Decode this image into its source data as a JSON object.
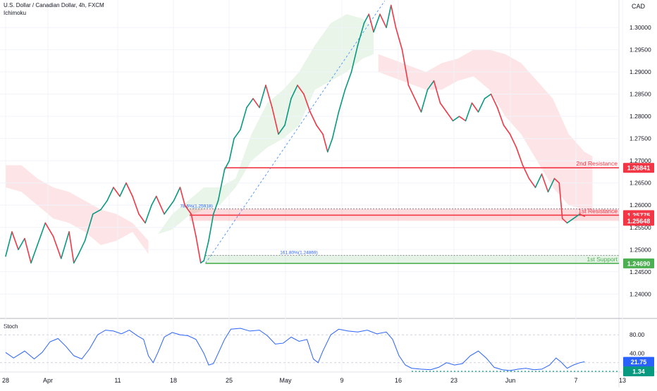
{
  "chart_data": [
    {
      "type": "line",
      "title": "U.S. Dollar / Canadian Dollar, 4h, FXCM",
      "indicator": "Ichimoku",
      "currency": "CAD",
      "ylim": [
        1.2345,
        1.3062
      ],
      "y_ticks": [
        "1.30000",
        "1.29500",
        "1.29000",
        "1.28500",
        "1.28000",
        "1.27500",
        "1.27000",
        "1.26500",
        "1.26000",
        "1.25500",
        "1.25000",
        "1.24500",
        "1.24000"
      ],
      "x_ticks": [
        "28",
        "Apr",
        "11",
        "18",
        "25",
        "May",
        "9",
        "16",
        "23",
        "Jun",
        "7",
        "13"
      ],
      "price_path": [
        [
          0,
          1.2485
        ],
        [
          0.4,
          1.254
        ],
        [
          0.8,
          1.25
        ],
        [
          1.2,
          1.2525
        ],
        [
          1.6,
          1.247
        ],
        [
          2.0,
          1.251
        ],
        [
          2.5,
          1.256
        ],
        [
          3.0,
          1.253
        ],
        [
          3.5,
          1.248
        ],
        [
          4.0,
          1.254
        ],
        [
          4.3,
          1.247
        ],
        [
          4.6,
          1.249
        ],
        [
          5.0,
          1.252
        ],
        [
          5.5,
          1.258
        ],
        [
          6.0,
          1.259
        ],
        [
          6.4,
          1.261
        ],
        [
          6.8,
          1.264
        ],
        [
          7.2,
          1.262
        ],
        [
          7.6,
          1.265
        ],
        [
          8.0,
          1.262
        ],
        [
          8.4,
          1.258
        ],
        [
          8.8,
          1.256
        ],
        [
          9.2,
          1.26
        ],
        [
          9.5,
          1.262
        ],
        [
          10.0,
          1.258
        ],
        [
          10.6,
          1.261
        ],
        [
          11.0,
          1.264
        ],
        [
          11.3,
          1.26
        ],
        [
          11.7,
          1.258
        ],
        [
          12.0,
          1.253
        ],
        [
          12.3,
          1.247
        ],
        [
          12.5,
          1.2475
        ],
        [
          12.8,
          1.252
        ],
        [
          13.1,
          1.258
        ],
        [
          13.4,
          1.261
        ],
        [
          13.8,
          1.268
        ],
        [
          14.1,
          1.27
        ],
        [
          14.4,
          1.275
        ],
        [
          14.8,
          1.277
        ],
        [
          15.2,
          1.282
        ],
        [
          15.6,
          1.284
        ],
        [
          16.0,
          1.282
        ],
        [
          16.4,
          1.287
        ],
        [
          16.8,
          1.282
        ],
        [
          17.2,
          1.276
        ],
        [
          17.6,
          1.278
        ],
        [
          18.0,
          1.284
        ],
        [
          18.4,
          1.287
        ],
        [
          18.8,
          1.285
        ],
        [
          19.2,
          1.281
        ],
        [
          19.6,
          1.278
        ],
        [
          20.0,
          1.276
        ],
        [
          20.3,
          1.272
        ],
        [
          20.6,
          1.275
        ],
        [
          21.0,
          1.281
        ],
        [
          21.4,
          1.286
        ],
        [
          21.8,
          1.29
        ],
        [
          22.2,
          1.296
        ],
        [
          22.6,
          1.301
        ],
        [
          22.9,
          1.303
        ],
        [
          23.2,
          1.299
        ],
        [
          23.6,
          1.303
        ],
        [
          24.0,
          1.3
        ],
        [
          24.3,
          1.305
        ],
        [
          24.6,
          1.3
        ],
        [
          25.0,
          1.295
        ],
        [
          25.4,
          1.287
        ],
        [
          25.8,
          1.284
        ],
        [
          26.2,
          1.281
        ],
        [
          26.6,
          1.286
        ],
        [
          27.0,
          1.288
        ],
        [
          27.4,
          1.283
        ],
        [
          27.8,
          1.281
        ],
        [
          28.2,
          1.279
        ],
        [
          28.6,
          1.28
        ],
        [
          29.0,
          1.279
        ],
        [
          29.4,
          1.283
        ],
        [
          29.8,
          1.281
        ],
        [
          30.2,
          1.284
        ],
        [
          30.6,
          1.285
        ],
        [
          31.0,
          1.282
        ],
        [
          31.4,
          1.278
        ],
        [
          31.8,
          1.276
        ],
        [
          32.2,
          1.273
        ],
        [
          32.6,
          1.269
        ],
        [
          33.0,
          1.266
        ],
        [
          33.4,
          1.264
        ],
        [
          33.8,
          1.267
        ],
        [
          34.2,
          1.263
        ],
        [
          34.6,
          1.266
        ],
        [
          34.9,
          1.265
        ],
        [
          35.1,
          1.257
        ],
        [
          35.4,
          1.256
        ],
        [
          35.8,
          1.257
        ],
        [
          36.2,
          1.258
        ],
        [
          36.5,
          1.2575
        ]
      ],
      "ichimoku_cloud_bullish": [
        [
          9.6,
          1.2535,
          1.2535
        ],
        [
          10.5,
          1.2545,
          1.258
        ],
        [
          11.5,
          1.2575,
          1.261
        ],
        [
          12.5,
          1.259,
          1.264
        ],
        [
          13.5,
          1.26,
          1.264
        ],
        [
          14.5,
          1.264,
          1.266
        ],
        [
          15.5,
          1.27,
          1.276
        ],
        [
          16.5,
          1.273,
          1.283
        ],
        [
          17.5,
          1.275,
          1.286
        ],
        [
          18.5,
          1.278,
          1.29
        ],
        [
          19.5,
          1.286,
          1.296
        ],
        [
          20.5,
          1.288,
          1.301
        ],
        [
          21.5,
          1.29,
          1.303
        ],
        [
          22.5,
          1.293,
          1.302
        ],
        [
          23.2,
          1.294,
          1.3
        ]
      ],
      "ichimoku_cloud_bearish": [
        [
          0,
          1.264,
          1.269
        ],
        [
          1,
          1.263,
          1.269
        ],
        [
          2,
          1.26,
          1.266
        ],
        [
          3,
          1.257,
          1.264
        ],
        [
          4,
          1.256,
          1.263
        ],
        [
          5,
          1.254,
          1.261
        ],
        [
          6,
          1.251,
          1.259
        ],
        [
          7,
          1.252,
          1.258
        ],
        [
          8,
          1.254,
          1.256
        ],
        [
          9,
          1.249,
          1.252
        ],
        [
          23.5,
          1.29,
          1.294
        ],
        [
          25,
          1.288,
          1.292
        ],
        [
          26.5,
          1.286,
          1.29
        ],
        [
          27.5,
          1.286,
          1.292
        ],
        [
          28.5,
          1.288,
          1.293
        ],
        [
          29.5,
          1.289,
          1.295
        ],
        [
          30.5,
          1.286,
          1.295
        ],
        [
          31.5,
          1.28,
          1.294
        ],
        [
          32.5,
          1.276,
          1.292
        ],
        [
          33.5,
          1.27,
          1.288
        ],
        [
          34.5,
          1.264,
          1.284
        ],
        [
          35.5,
          1.26,
          1.276
        ],
        [
          36.5,
          1.259,
          1.272
        ],
        [
          37,
          1.259,
          1.271
        ]
      ],
      "fib_line": {
        "x": [
          12.6,
          23.9
        ],
        "y": [
          1.2469,
          1.306
        ]
      },
      "levels": [
        {
          "label": "2nd Resistance",
          "value": 1.26841,
          "price_tag": "1.26841",
          "color": "#f23645",
          "x_start": 13.8
        },
        {
          "label": "1st Resistance",
          "value": 1.25775,
          "price_tag": "1.25775",
          "color": "#f23645",
          "x_start": 11.6
        },
        {
          "label": "1st Support",
          "value": 1.2469,
          "price_tag": "1.24690",
          "color": "#4caf50",
          "x_start": 12.6
        }
      ],
      "zone": {
        "low": 1.25648,
        "high": 1.25918,
        "low_tag": "1.25648",
        "color": "#f23645"
      },
      "annotations": [
        {
          "text": "78.6%(1.25918)",
          "x": 11.0,
          "y": 1.25918
        },
        {
          "text": "161.80%(1.24869)",
          "x": 17.3,
          "y": 1.24869
        }
      ]
    },
    {
      "type": "line",
      "title": "Stoch",
      "ylim": [
        0,
        100
      ],
      "y_ticks": [
        "80.00",
        "40.00"
      ],
      "current_value": "21.75",
      "current_value_color": "#2962ff",
      "low_tag": "1.34",
      "low_value": 1.34,
      "low_color": "#089981",
      "series": [
        {
          "values": [
            [
              0,
              42
            ],
            [
              0.5,
              30
            ],
            [
              1.2,
              45
            ],
            [
              1.8,
              28
            ],
            [
              2.3,
              42
            ],
            [
              2.8,
              65
            ],
            [
              3.3,
              72
            ],
            [
              3.8,
              55
            ],
            [
              4.3,
              35
            ],
            [
              4.8,
              28
            ],
            [
              5.3,
              50
            ],
            [
              5.8,
              80
            ],
            [
              6.3,
              90
            ],
            [
              6.8,
              88
            ],
            [
              7.3,
              82
            ],
            [
              7.8,
              90
            ],
            [
              8.3,
              78
            ],
            [
              8.7,
              70
            ],
            [
              9.0,
              35
            ],
            [
              9.3,
              20
            ],
            [
              9.6,
              42
            ],
            [
              10.0,
              75
            ],
            [
              10.5,
              85
            ],
            [
              11.0,
              80
            ],
            [
              11.5,
              78
            ],
            [
              12.0,
              70
            ],
            [
              12.5,
              40
            ],
            [
              12.8,
              15
            ],
            [
              13.1,
              18
            ],
            [
              13.4,
              40
            ],
            [
              13.8,
              70
            ],
            [
              14.2,
              92
            ],
            [
              14.8,
              94
            ],
            [
              15.4,
              88
            ],
            [
              16.0,
              90
            ],
            [
              16.5,
              78
            ],
            [
              17.0,
              60
            ],
            [
              17.5,
              62
            ],
            [
              18.0,
              75
            ],
            [
              18.5,
              66
            ],
            [
              19.0,
              70
            ],
            [
              19.4,
              28
            ],
            [
              19.7,
              20
            ],
            [
              20.0,
              45
            ],
            [
              20.5,
              80
            ],
            [
              21.0,
              92
            ],
            [
              21.6,
              88
            ],
            [
              22.2,
              86
            ],
            [
              22.8,
              90
            ],
            [
              23.4,
              82
            ],
            [
              24.0,
              86
            ],
            [
              24.4,
              70
            ],
            [
              24.8,
              35
            ],
            [
              25.2,
              15
            ],
            [
              25.6,
              8
            ],
            [
              26.2,
              6
            ],
            [
              26.8,
              5
            ],
            [
              27.3,
              10
            ],
            [
              27.8,
              20
            ],
            [
              28.3,
              15
            ],
            [
              28.8,
              18
            ],
            [
              29.3,
              35
            ],
            [
              29.8,
              45
            ],
            [
              30.3,
              30
            ],
            [
              30.8,
              10
            ],
            [
              31.3,
              5
            ],
            [
              31.8,
              3
            ],
            [
              32.3,
              6
            ],
            [
              32.8,
              8
            ],
            [
              33.3,
              5
            ],
            [
              33.8,
              6
            ],
            [
              34.3,
              15
            ],
            [
              34.7,
              30
            ],
            [
              35.0,
              22
            ],
            [
              35.4,
              8
            ],
            [
              35.8,
              15
            ],
            [
              36.2,
              20
            ],
            [
              36.5,
              22
            ]
          ]
        }
      ]
    }
  ]
}
